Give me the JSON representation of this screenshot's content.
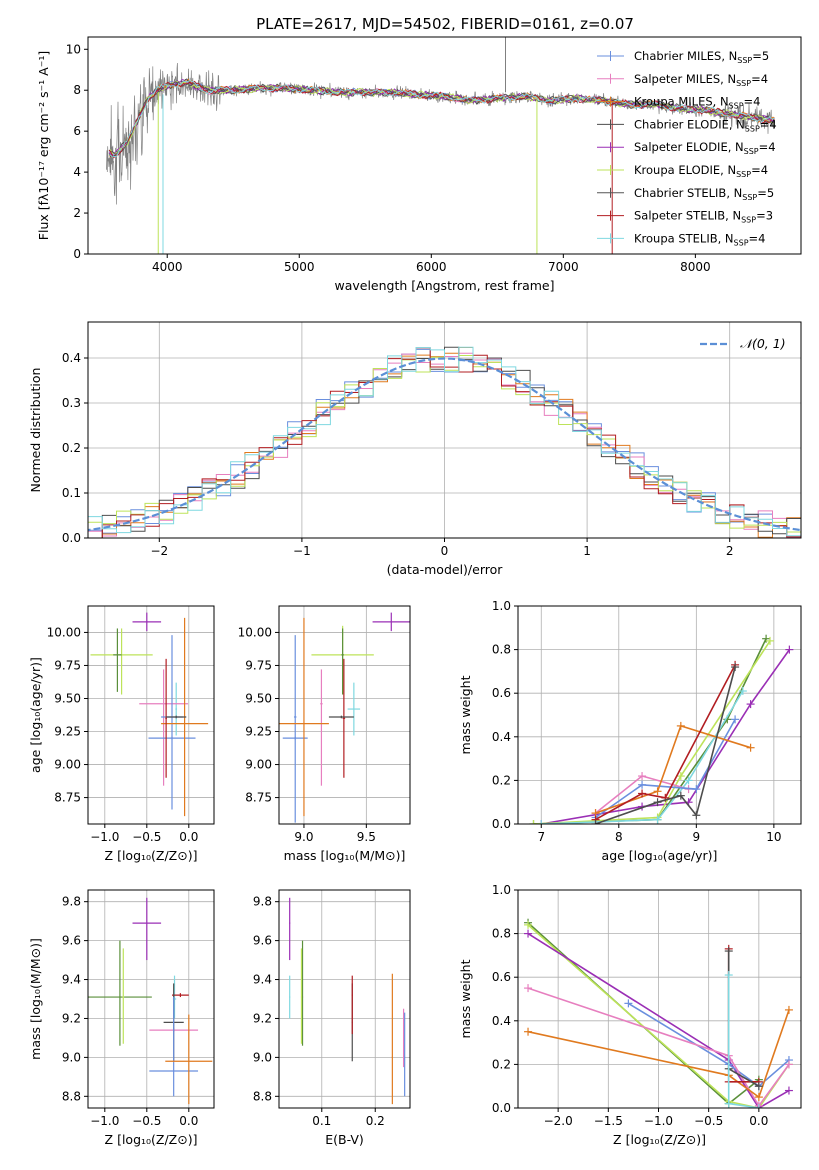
{
  "figure": {
    "title": "PLATE=2617, MJD=54502, FIBERID=0161, z=0.07"
  },
  "chart_data": [
    {
      "id": "spectrum",
      "type": "line",
      "xlabel": "wavelength [Angstrom, rest frame]",
      "ylabel": "Flux [fλ10⁻¹⁷ erg cm⁻² s⁻¹ A⁻¹]",
      "xlim": [
        3400,
        8800
      ],
      "ylim": [
        0,
        10.6
      ],
      "xticks": [
        4000,
        5000,
        6000,
        7000,
        8000
      ],
      "yticks": [
        0,
        2,
        4,
        6,
        8,
        10
      ],
      "grid": false,
      "legend_position": "top-right",
      "series": [
        {
          "name": "Chabrier MILES, N_SSP=5",
          "color": "#6a8fde"
        },
        {
          "name": "Salpeter MILES, N_SSP=4",
          "color": "#e77fbf"
        },
        {
          "name": "Kroupa MILES, N_SSP=4",
          "color": "#e07a1f"
        },
        {
          "name": "Chabrier ELODIE, N_SSP=4",
          "color": "#4d4d4d"
        },
        {
          "name": "Salpeter ELODIE, N_SSP=4",
          "color": "#9a2fb5"
        },
        {
          "name": "Kroupa ELODIE, N_SSP=4",
          "color": "#bde35a"
        },
        {
          "name": "Chabrier STELIB, N_SSP=5",
          "color": "#555555"
        },
        {
          "name": "Salpeter STELIB, N_SSP=3",
          "color": "#b21e22"
        },
        {
          "name": "Kroupa STELIB, N_SSP=4",
          "color": "#7fd8e0"
        }
      ],
      "data_color": "#808080",
      "continuum": {
        "x": [
          3500,
          3600,
          3700,
          3780,
          3850,
          3950,
          4050,
          4150,
          4300,
          4500,
          4700,
          4900,
          5100,
          5300,
          5500,
          5700,
          5900,
          6100,
          6300,
          6500,
          6700,
          6900,
          7100,
          7300,
          7500,
          7700,
          7900,
          8100,
          8300,
          8500,
          8600
        ],
        "y": [
          5.2,
          4.8,
          5.5,
          6.6,
          7.6,
          8.1,
          8.3,
          8.4,
          8.0,
          8.0,
          8.1,
          8.1,
          8.0,
          7.9,
          7.9,
          7.9,
          7.8,
          7.7,
          7.5,
          7.6,
          7.7,
          7.5,
          7.6,
          7.5,
          7.3,
          7.3,
          7.1,
          7.0,
          6.8,
          6.6,
          6.5
        ]
      }
    },
    {
      "id": "residuals",
      "type": "bar",
      "xlabel": "(data-model)/error",
      "ylabel": "Normed distribution",
      "xlim": [
        -2.5,
        2.5
      ],
      "ylim": [
        0,
        0.48
      ],
      "xticks": [
        -2,
        -1,
        0,
        1,
        2
      ],
      "yticks": [
        0.0,
        0.1,
        0.2,
        0.3,
        0.4
      ],
      "grid": true,
      "legend_position": "top-right",
      "reference_label": "𝒩(0, 1)",
      "reference_color": "#5b8fd6",
      "bin_width": 0.1,
      "histogram_colors": [
        "#6a8fde",
        "#e77fbf",
        "#e07a1f",
        "#4d4d4d",
        "#bde35a",
        "#b21e22",
        "#7fd8e0"
      ]
    },
    {
      "id": "age-vs-Z",
      "type": "scatter",
      "xlabel": "Z [log₁₀(Z/Z⊙)]",
      "ylabel": "age  [log₁₀(age/yr)]",
      "xlim": [
        -1.2,
        0.3
      ],
      "ylim": [
        8.55,
        10.2
      ],
      "xticks": [
        -1.0,
        -0.5,
        0.0
      ],
      "yticks": [
        8.75,
        9.0,
        9.25,
        9.5,
        9.75,
        10.0
      ],
      "grid": true,
      "points": [
        {
          "x": -0.5,
          "y": 10.08,
          "xerr": [
            0.17,
            0.17
          ],
          "yerr": [
            0.07,
            0.07
          ],
          "color": "#9a2fb5"
        },
        {
          "x": -0.8,
          "y": 9.83,
          "xerr": [
            0.37,
            0.37
          ],
          "yerr": [
            0.3,
            0.2
          ],
          "color": "#bde35a"
        },
        {
          "x": -0.85,
          "y": 9.83,
          "xerr": [
            0.05,
            0.05
          ],
          "yerr": [
            0.28,
            0.2
          ],
          "color": "#5a8f3a"
        },
        {
          "x": -0.15,
          "y": 9.42,
          "xerr": [
            0.01,
            0.01
          ],
          "yerr": [
            0.2,
            0.2
          ],
          "color": "#7fd8e0"
        },
        {
          "x": -0.3,
          "y": 9.46,
          "xerr": [
            0.29,
            0.29
          ],
          "yerr": [
            0.62,
            0.26
          ],
          "color": "#e77fbf"
        },
        {
          "x": -0.2,
          "y": 9.36,
          "xerr": [
            0.13,
            0.13
          ],
          "yerr": [
            0.7,
            0.62
          ],
          "color": "#6a8fde"
        },
        {
          "x": -0.2,
          "y": 9.2,
          "xerr": [
            0.28,
            0.28
          ],
          "yerr": [
            0.01,
            0.01
          ],
          "color": "#6a8fde"
        },
        {
          "x": -0.05,
          "y": 9.31,
          "xerr": [
            0.28,
            0.28
          ],
          "yerr": [
            0.7,
            0.8
          ],
          "color": "#e07a1f"
        },
        {
          "x": -0.27,
          "y": 9.35,
          "xerr": [
            0.01,
            0.01
          ],
          "yerr": [
            0.45,
            0.45
          ],
          "color": "#b21e22"
        },
        {
          "x": -0.15,
          "y": 9.36,
          "xerr": [
            0.12,
            0.12
          ],
          "yerr": [
            0.01,
            0.01
          ],
          "color": "#4d4d4d"
        }
      ]
    },
    {
      "id": "age-vs-mass",
      "type": "scatter",
      "xlabel": "mass [log₁₀(M/M⊙)]",
      "ylabel": "",
      "xlim": [
        8.8,
        9.85
      ],
      "ylim": [
        8.55,
        10.2
      ],
      "xticks": [
        9.0,
        9.5
      ],
      "yticks": [
        8.75,
        9.0,
        9.25,
        9.5,
        9.75,
        10.0
      ],
      "grid": true,
      "points": [
        {
          "x": 9.7,
          "y": 10.08,
          "xerr": [
            0.15,
            0.15
          ],
          "yerr": [
            0.07,
            0.07
          ],
          "color": "#9a2fb5"
        },
        {
          "x": 9.31,
          "y": 9.83,
          "xerr": [
            0.25,
            0.25
          ],
          "yerr": [
            0.3,
            0.22
          ],
          "color": "#bde35a"
        },
        {
          "x": 9.31,
          "y": 9.83,
          "xerr": [
            0.01,
            0.01
          ],
          "yerr": [
            0.3,
            0.2
          ],
          "color": "#5a8f3a"
        },
        {
          "x": 9.4,
          "y": 9.42,
          "xerr": [
            0.05,
            0.05
          ],
          "yerr": [
            0.2,
            0.2
          ],
          "color": "#7fd8e0"
        },
        {
          "x": 9.14,
          "y": 9.46,
          "xerr": [
            0.01,
            0.01
          ],
          "yerr": [
            0.62,
            0.26
          ],
          "color": "#e77fbf"
        },
        {
          "x": 8.93,
          "y": 9.36,
          "xerr": [
            0.01,
            0.01
          ],
          "yerr": [
            0.8,
            0.62
          ],
          "color": "#6a8fde"
        },
        {
          "x": 8.93,
          "y": 9.2,
          "xerr": [
            0.1,
            0.1
          ],
          "yerr": [
            0.01,
            0.01
          ],
          "color": "#6a8fde"
        },
        {
          "x": 9.0,
          "y": 9.31,
          "xerr": [
            0.2,
            0.2
          ],
          "yerr": [
            0.7,
            0.8
          ],
          "color": "#e07a1f"
        },
        {
          "x": 9.32,
          "y": 9.35,
          "xerr": [
            0.01,
            0.01
          ],
          "yerr": [
            0.45,
            0.45
          ],
          "color": "#b21e22"
        },
        {
          "x": 9.3,
          "y": 9.36,
          "xerr": [
            0.1,
            0.1
          ],
          "yerr": [
            0.01,
            0.01
          ],
          "color": "#4d4d4d"
        }
      ]
    },
    {
      "id": "massweight-vs-age",
      "type": "line",
      "xlabel": "age  [log₁₀(age/yr)]",
      "ylabel": "mass weight",
      "xlim": [
        6.7,
        10.35
      ],
      "ylim": [
        0.0,
        1.0
      ],
      "xticks": [
        7,
        8,
        9,
        10
      ],
      "yticks": [
        0.0,
        0.2,
        0.4,
        0.6,
        0.8,
        1.0
      ],
      "grid": true,
      "series": [
        {
          "color": "#9a2fb5",
          "x": [
            7.0,
            8.3,
            8.9,
            9.7,
            10.2
          ],
          "y": [
            0.0,
            0.08,
            0.1,
            0.55,
            0.8
          ]
        },
        {
          "color": "#5a8f3a",
          "x": [
            6.9,
            8.5,
            9.4,
            9.9
          ],
          "y": [
            0.0,
            0.02,
            0.48,
            0.85
          ]
        },
        {
          "color": "#bde35a",
          "x": [
            6.9,
            8.5,
            8.8,
            9.95
          ],
          "y": [
            0.0,
            0.03,
            0.22,
            0.84
          ]
        },
        {
          "color": "#7fd8e0",
          "x": [
            7.0,
            8.5,
            8.9,
            9.6
          ],
          "y": [
            0.0,
            0.02,
            0.2,
            0.61
          ]
        },
        {
          "color": "#e77fbf",
          "x": [
            7.7,
            8.3,
            8.9
          ],
          "y": [
            0.05,
            0.22,
            0.16
          ]
        },
        {
          "color": "#6a8fde",
          "x": [
            7.7,
            8.3,
            9.0,
            9.5
          ],
          "y": [
            0.03,
            0.18,
            0.16,
            0.48
          ]
        },
        {
          "color": "#e07a1f",
          "x": [
            7.7,
            8.5,
            8.8,
            9.7
          ],
          "y": [
            0.05,
            0.15,
            0.45,
            0.35
          ]
        },
        {
          "color": "#b21e22",
          "x": [
            7.7,
            8.3,
            8.6,
            9.5
          ],
          "y": [
            0.02,
            0.14,
            0.12,
            0.73
          ]
        },
        {
          "color": "#4d4d4d",
          "x": [
            7.7,
            8.5,
            8.8,
            9.0,
            9.5
          ],
          "y": [
            0.0,
            0.1,
            0.13,
            0.04,
            0.72
          ]
        }
      ]
    },
    {
      "id": "mass-vs-Z",
      "type": "scatter",
      "xlabel": "Z [log₁₀(Z/Z⊙)]",
      "ylabel": "mass [log₁₀(M/M⊙)]",
      "xlim": [
        -1.2,
        0.3
      ],
      "ylim": [
        8.74,
        9.86
      ],
      "xticks": [
        -1.0,
        -0.5,
        0.0
      ],
      "yticks": [
        8.8,
        9.0,
        9.2,
        9.4,
        9.6,
        9.8
      ],
      "grid": true,
      "points": [
        {
          "x": -0.5,
          "y": 9.69,
          "xerr": [
            0.17,
            0.17
          ],
          "yerr": [
            0.19,
            0.13
          ],
          "color": "#9a2fb5"
        },
        {
          "x": -0.82,
          "y": 9.31,
          "xerr": [
            0.38,
            0.38
          ],
          "yerr": [
            0.25,
            0.29
          ],
          "color": "#5a8f3a"
        },
        {
          "x": -0.78,
          "y": 9.31,
          "xerr": [
            0.01,
            0.01
          ],
          "yerr": [
            0.24,
            0.25
          ],
          "color": "#bde35a"
        },
        {
          "x": -0.17,
          "y": 9.3,
          "xerr": [
            0.02,
            0.02
          ],
          "yerr": [
            0.1,
            0.12
          ],
          "color": "#7fd8e0"
        },
        {
          "x": -0.18,
          "y": 9.14,
          "xerr": [
            0.29,
            0.29
          ],
          "yerr": [
            0.01,
            0.01
          ],
          "color": "#e77fbf"
        },
        {
          "x": -0.1,
          "y": 9.32,
          "xerr": [
            0.1,
            0.1
          ],
          "yerr": [
            0.01,
            0.01
          ],
          "color": "#b21e22"
        },
        {
          "x": -0.18,
          "y": 9.18,
          "xerr": [
            0.12,
            0.12
          ],
          "yerr": [
            0.2,
            0.2
          ],
          "color": "#4d4d4d"
        },
        {
          "x": -0.18,
          "y": 8.93,
          "xerr": [
            0.29,
            0.29
          ],
          "yerr": [
            0.13,
            0.38
          ],
          "color": "#6a8fde"
        },
        {
          "x": 0.0,
          "y": 8.98,
          "xerr": [
            0.28,
            0.28
          ],
          "yerr": [
            0.22,
            0.24
          ],
          "color": "#e07a1f"
        }
      ]
    },
    {
      "id": "mass-vs-EBV",
      "type": "scatter",
      "xlabel": "E(B-V)",
      "ylabel": "",
      "xlim": [
        0.02,
        0.265
      ],
      "ylim": [
        8.74,
        9.86
      ],
      "xticks": [
        0.1,
        0.2
      ],
      "yticks": [
        8.8,
        9.0,
        9.2,
        9.4,
        9.6,
        9.8
      ],
      "grid": true,
      "points": [
        {
          "x": 0.04,
          "y": 9.69,
          "xerr": [
            0.001,
            0.001
          ],
          "yerr": [
            0.19,
            0.13
          ],
          "color": "#9a2fb5"
        },
        {
          "x": 0.04,
          "y": 9.31,
          "xerr": [
            0.001,
            0.001
          ],
          "yerr": [
            0.11,
            0.11
          ],
          "color": "#7fd8e0"
        },
        {
          "x": 0.064,
          "y": 9.31,
          "xerr": [
            0.001,
            0.001
          ],
          "yerr": [
            0.25,
            0.29
          ],
          "color": "#5a8f3a"
        },
        {
          "x": 0.062,
          "y": 9.31,
          "xerr": [
            0.001,
            0.001
          ],
          "yerr": [
            0.24,
            0.25
          ],
          "color": "#bde35a"
        },
        {
          "x": 0.157,
          "y": 9.18,
          "xerr": [
            0.001,
            0.001
          ],
          "yerr": [
            0.2,
            0.2
          ],
          "color": "#4d4d4d"
        },
        {
          "x": 0.157,
          "y": 9.32,
          "xerr": [
            0.001,
            0.001
          ],
          "yerr": [
            0.2,
            0.1
          ],
          "color": "#b21e22"
        },
        {
          "x": 0.232,
          "y": 9.0,
          "xerr": [
            0.001,
            0.001
          ],
          "yerr": [
            0.24,
            0.43
          ],
          "color": "#e07a1f"
        },
        {
          "x": 0.253,
          "y": 9.1,
          "xerr": [
            0.001,
            0.001
          ],
          "yerr": [
            0.15,
            0.15
          ],
          "color": "#e77fbf"
        },
        {
          "x": 0.255,
          "y": 9.0,
          "xerr": [
            0.001,
            0.001
          ],
          "yerr": [
            0.2,
            0.23
          ],
          "color": "#6a8fde"
        }
      ]
    },
    {
      "id": "massweight-vs-Z",
      "type": "line",
      "xlabel": "Z [log₁₀(Z/Z⊙)]",
      "ylabel": "mass weight",
      "xlim": [
        -2.4,
        0.42
      ],
      "ylim": [
        0.0,
        1.0
      ],
      "xticks": [
        -2.0,
        -1.5,
        -1.0,
        -0.5,
        0.0
      ],
      "yticks": [
        0.0,
        0.2,
        0.4,
        0.6,
        0.8,
        1.0
      ],
      "grid": true,
      "series": [
        {
          "color": "#5a8f3a",
          "x": [
            -2.3,
            -0.3,
            0.0
          ],
          "y": [
            0.85,
            0.02,
            0.13
          ]
        },
        {
          "color": "#bde35a",
          "x": [
            -2.3,
            -0.3,
            0.0,
            0.3
          ],
          "y": [
            0.84,
            0.03,
            0.0,
            0.2
          ]
        },
        {
          "color": "#9a2fb5",
          "x": [
            -2.3,
            -0.3,
            0.0,
            0.3
          ],
          "y": [
            0.8,
            0.22,
            0.0,
            0.08
          ]
        },
        {
          "color": "#6a8fde",
          "x": [
            -1.3,
            -0.3,
            0.0,
            0.3
          ],
          "y": [
            0.48,
            0.2,
            0.1,
            0.22
          ]
        },
        {
          "color": "#e77fbf",
          "x": [
            -2.3,
            -0.3,
            0.0,
            0.3
          ],
          "y": [
            0.55,
            0.24,
            0.01,
            0.2
          ]
        },
        {
          "color": "#e07a1f",
          "x": [
            -2.3,
            -0.3,
            0.0,
            0.3
          ],
          "y": [
            0.35,
            0.15,
            0.05,
            0.45
          ]
        },
        {
          "color": "#b21e22",
          "x": [
            -0.3,
            -0.3,
            0.0
          ],
          "y": [
            0.73,
            0.12,
            0.12
          ]
        },
        {
          "color": "#4d4d4d",
          "x": [
            -0.3,
            -0.3,
            0.0
          ],
          "y": [
            0.72,
            0.18,
            0.1
          ]
        },
        {
          "color": "#7fd8e0",
          "x": [
            -0.3,
            -0.3,
            0.0
          ],
          "y": [
            0.61,
            0.02,
            0.0
          ]
        }
      ]
    }
  ]
}
